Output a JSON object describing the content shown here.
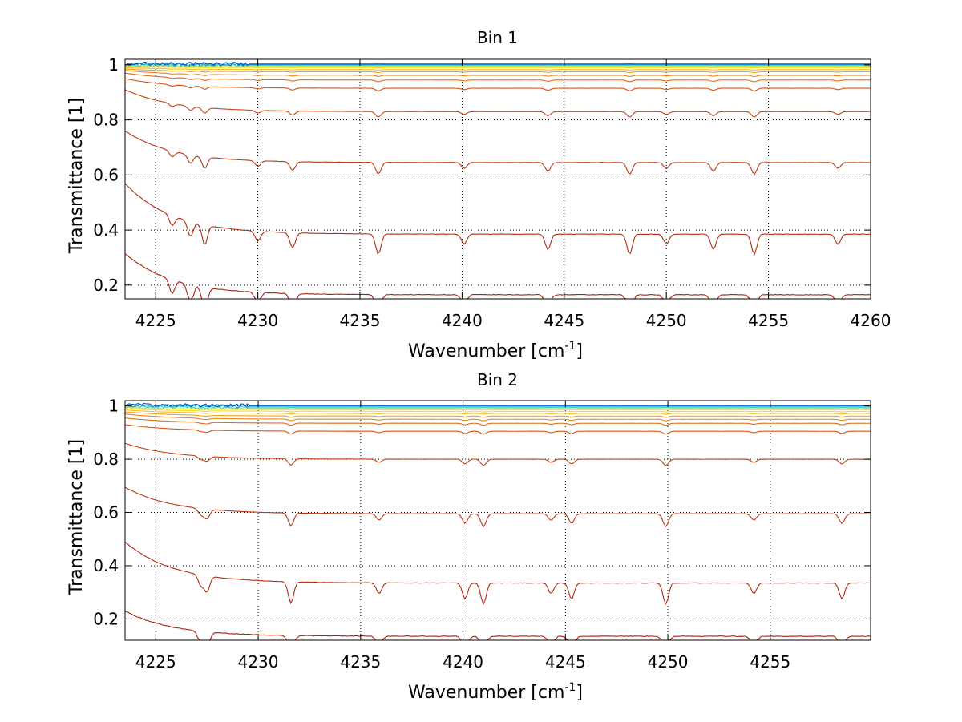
{
  "figure": {
    "background": "#ffffff"
  },
  "chart_data": [
    {
      "type": "line",
      "title": "Bin 1",
      "xlabel": "Wavenumber [cm",
      "xlabel_sup": "-1",
      "xlabel_end": "]",
      "ylabel": "Transmittance [1]",
      "xlim": [
        4223.5,
        4260
      ],
      "ylim": [
        0.15,
        1.02
      ],
      "xticks": [
        4225,
        4230,
        4235,
        4240,
        4245,
        4250,
        4255,
        4260
      ],
      "yticks": [
        0.2,
        0.4,
        0.6,
        0.8,
        1
      ],
      "grid": "dotted",
      "absorption_lines": [
        4225.8,
        4226.7,
        4227.4,
        4230,
        4231.7,
        4235.9,
        4240.1,
        4244.2,
        4248.2,
        4250.0,
        4252.3,
        4254.3,
        4258.4
      ],
      "series": [
        {
          "start": 0.315,
          "level": 0.165,
          "color": "#a8200c"
        },
        {
          "start": 0.57,
          "level": 0.385,
          "color": "#b32a10"
        },
        {
          "start": 0.76,
          "level": 0.645,
          "color": "#bd3512"
        },
        {
          "start": 0.91,
          "level": 0.83,
          "color": "#c64315"
        },
        {
          "start": 0.95,
          "level": 0.915,
          "color": "#d25519"
        },
        {
          "start": 0.97,
          "level": 0.945,
          "color": "#df6b1d"
        },
        {
          "start": 0.98,
          "level": 0.962,
          "color": "#e98522"
        },
        {
          "start": 0.985,
          "level": 0.975,
          "color": "#f29f26"
        },
        {
          "start": 0.99,
          "level": 0.983,
          "color": "#f8bc28"
        },
        {
          "start": 0.993,
          "level": 0.99,
          "color": "#f7d92b"
        },
        {
          "start": 0.996,
          "level": 0.994,
          "color": "#d9e83a"
        },
        {
          "start": 0.998,
          "level": 0.997,
          "color": "#9fe27a"
        },
        {
          "start": 1.0,
          "level": 0.999,
          "color": "#4fd0b8"
        },
        {
          "start": 1.002,
          "level": 1.001,
          "color": "#0aa9e0"
        },
        {
          "start": 1.004,
          "level": 1.003,
          "color": "#0055c8"
        }
      ]
    },
    {
      "type": "line",
      "title": "Bin 2",
      "xlabel": "Wavenumber [cm",
      "xlabel_sup": "-1",
      "xlabel_end": "]",
      "ylabel": "Transmittance [1]",
      "xlim": [
        4223.5,
        4259.9
      ],
      "ylim": [
        0.12,
        1.02
      ],
      "xticks": [
        4225,
        4230,
        4235,
        4240,
        4245,
        4250,
        4255
      ],
      "yticks": [
        0.2,
        0.4,
        0.6,
        0.8,
        1
      ],
      "grid": "dotted",
      "absorption_lines": [
        4227.2,
        4227.5,
        4231.6,
        4235.9,
        4240.1,
        4241.0,
        4244.3,
        4245.3,
        4249.9,
        4254.2,
        4258.5
      ],
      "series": [
        {
          "start": 0.23,
          "level": 0.135,
          "color": "#a8200c"
        },
        {
          "start": 0.49,
          "level": 0.335,
          "color": "#b32a10"
        },
        {
          "start": 0.695,
          "level": 0.595,
          "color": "#bd3512"
        },
        {
          "start": 0.86,
          "level": 0.8,
          "color": "#c64315"
        },
        {
          "start": 0.93,
          "level": 0.905,
          "color": "#d25519"
        },
        {
          "start": 0.955,
          "level": 0.935,
          "color": "#df6b1d"
        },
        {
          "start": 0.97,
          "level": 0.95,
          "color": "#e98522"
        },
        {
          "start": 0.978,
          "level": 0.962,
          "color": "#f29f26"
        },
        {
          "start": 0.985,
          "level": 0.972,
          "color": "#f8bc28"
        },
        {
          "start": 0.99,
          "level": 0.98,
          "color": "#f7d92b"
        },
        {
          "start": 0.994,
          "level": 0.986,
          "color": "#d9e83a"
        },
        {
          "start": 0.997,
          "level": 0.991,
          "color": "#9fe27a"
        },
        {
          "start": 1.0,
          "level": 0.995,
          "color": "#4fd0b8"
        },
        {
          "start": 1.003,
          "level": 0.999,
          "color": "#0aa9e0"
        },
        {
          "start": 1.005,
          "level": 1.002,
          "color": "#0055c8"
        }
      ]
    }
  ]
}
